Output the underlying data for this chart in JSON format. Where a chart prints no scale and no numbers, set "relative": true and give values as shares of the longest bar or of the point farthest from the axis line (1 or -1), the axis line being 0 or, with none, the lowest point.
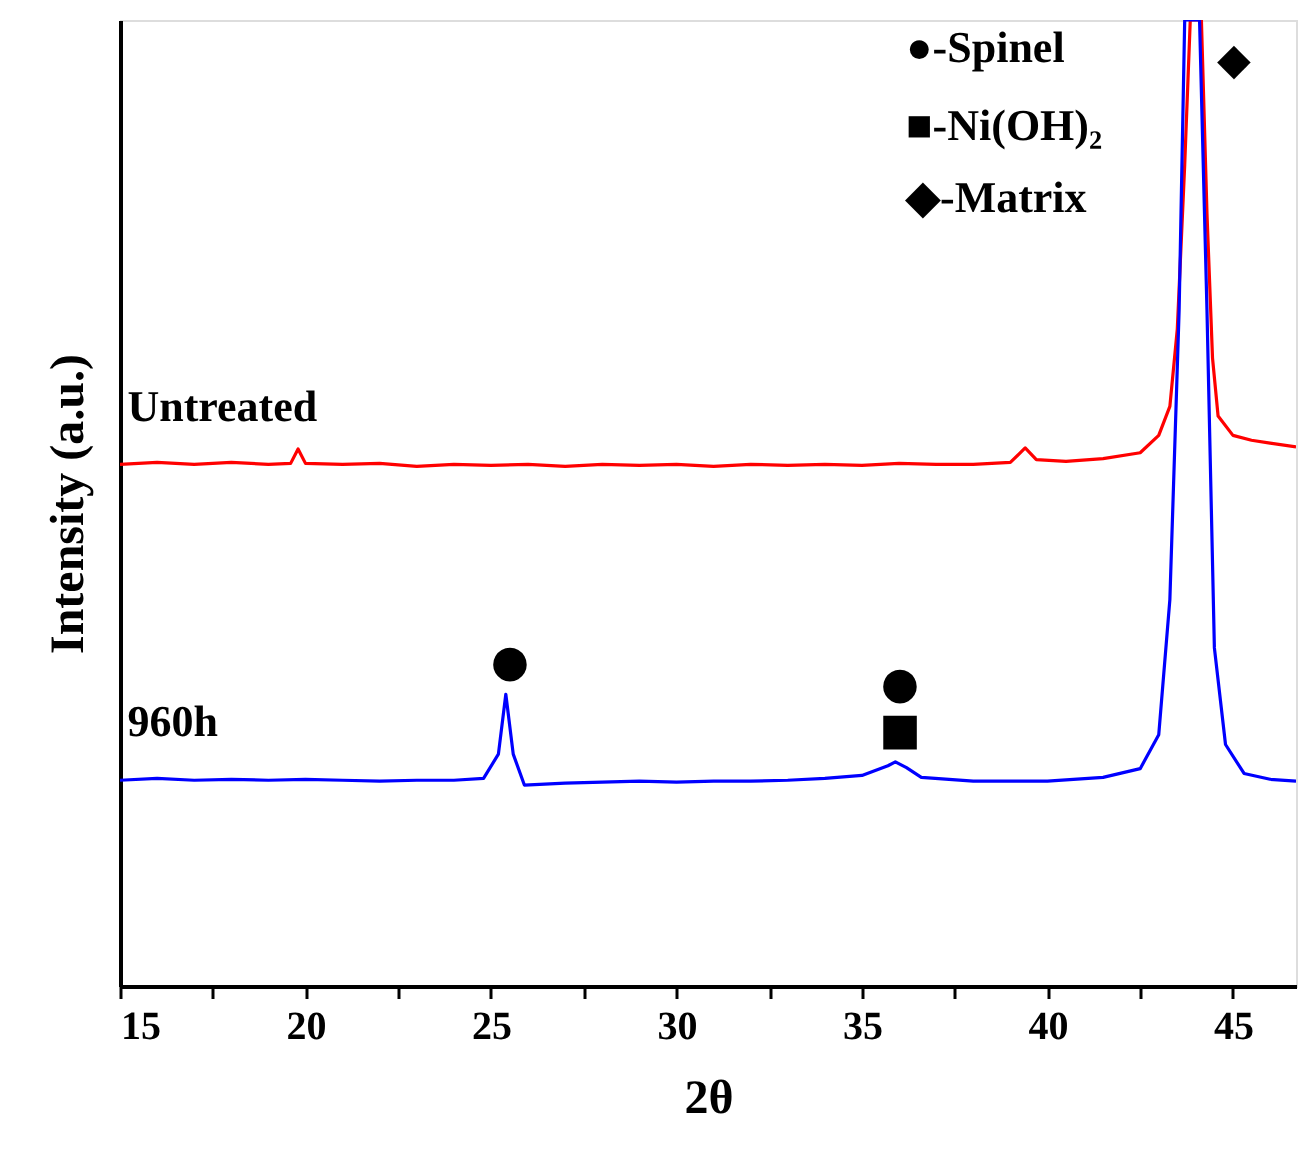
{
  "chart_data": {
    "type": "line",
    "relative": true,
    "xlabel": "2θ",
    "ylabel": "Intensity (a.u.)",
    "xlim": [
      15,
      46.7
    ],
    "xticks": [
      15,
      {
        "value": 17.5,
        "label": null
      },
      20,
      {
        "value": 22.5,
        "label": null
      },
      25,
      {
        "value": 27.5,
        "label": null
      },
      30,
      {
        "value": 32.5,
        "label": null
      },
      35,
      {
        "value": 37.5,
        "label": null
      },
      40,
      {
        "value": 42.5,
        "label": null
      },
      45
    ],
    "grid": false,
    "marker": "none",
    "line_style": "solid",
    "series": [
      {
        "name": "Untreated",
        "color": "#ff0000",
        "x": [
          15,
          16,
          17,
          18,
          19,
          19.6,
          19.8,
          20.0,
          21,
          22,
          23,
          24,
          25,
          26,
          27,
          28,
          29,
          30,
          31,
          32,
          33,
          34,
          35,
          36,
          37,
          38,
          39,
          39.4,
          39.7,
          40.5,
          41.5,
          42.5,
          43.0,
          43.3,
          43.5,
          43.7,
          43.85,
          44.15,
          44.3,
          44.45,
          44.6,
          45,
          45.5,
          46,
          46.7
        ],
        "values": [
          0.54,
          0.542,
          0.54,
          0.542,
          0.54,
          0.541,
          0.556,
          0.541,
          0.54,
          0.541,
          0.538,
          0.54,
          0.539,
          0.54,
          0.538,
          0.54,
          0.539,
          0.54,
          0.538,
          0.54,
          0.539,
          0.54,
          0.539,
          0.541,
          0.54,
          0.54,
          0.542,
          0.557,
          0.545,
          0.543,
          0.546,
          0.552,
          0.57,
          0.6,
          0.68,
          0.85,
          1.0,
          1.0,
          0.8,
          0.65,
          0.59,
          0.57,
          0.565,
          0.562,
          0.558
        ]
      },
      {
        "name": "960h",
        "color": "#0000ff",
        "x": [
          15,
          16,
          17,
          18,
          19,
          20,
          21,
          22,
          23,
          24,
          24.8,
          25.2,
          25.4,
          25.6,
          25.9,
          27,
          28,
          29,
          30,
          31,
          32,
          33,
          34,
          35,
          35.7,
          35.9,
          36.2,
          36.6,
          38,
          40,
          41.5,
          42.5,
          43.0,
          43.3,
          43.55,
          43.7,
          44.1,
          44.3,
          44.5,
          44.8,
          45.3,
          46,
          46.7
        ],
        "values": [
          0.213,
          0.215,
          0.213,
          0.214,
          0.213,
          0.214,
          0.213,
          0.212,
          0.213,
          0.213,
          0.215,
          0.24,
          0.302,
          0.24,
          0.208,
          0.21,
          0.211,
          0.212,
          0.211,
          0.212,
          0.212,
          0.213,
          0.215,
          0.218,
          0.228,
          0.232,
          0.226,
          0.216,
          0.212,
          0.212,
          0.216,
          0.225,
          0.26,
          0.4,
          0.7,
          1.0,
          1.0,
          0.7,
          0.35,
          0.25,
          0.22,
          0.214,
          0.212
        ]
      }
    ],
    "annotations": [
      "●",
      "●",
      "■",
      "◆",
      "●-Spinel",
      "■-Ni(OH)₂",
      "◆-Matrix"
    ]
  }
}
